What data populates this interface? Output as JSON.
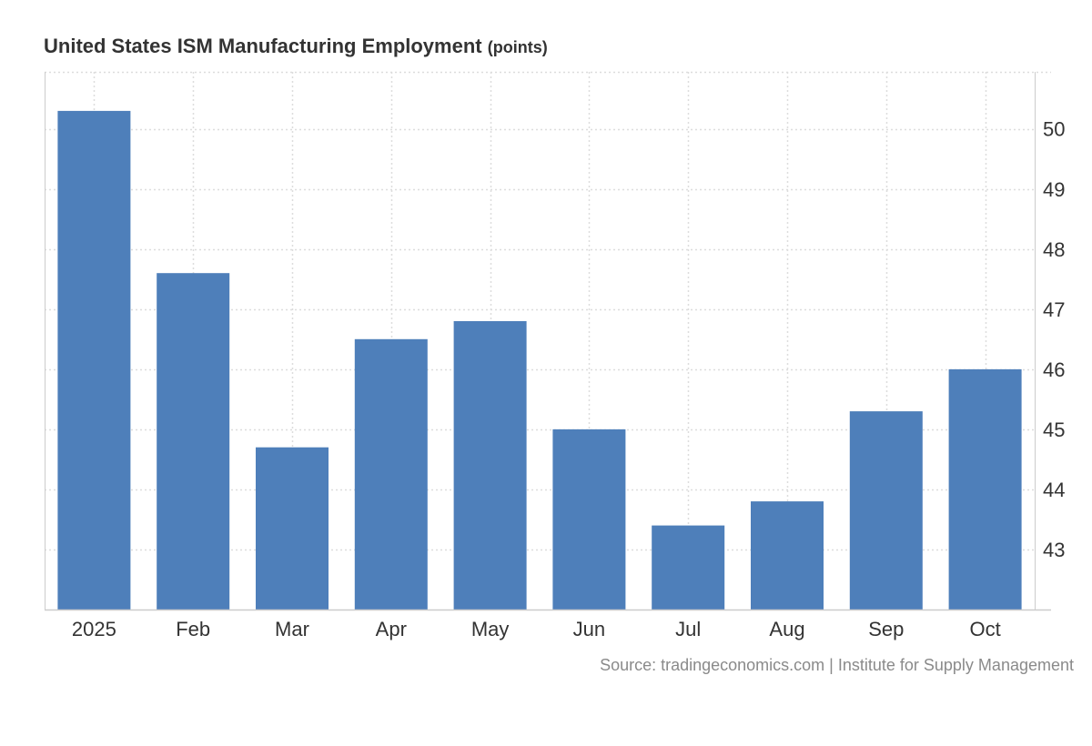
{
  "chart_data": {
    "type": "bar",
    "title": "United States ISM Manufacturing Employment",
    "unit_label": "(points)",
    "categories": [
      "2025",
      "Feb",
      "Mar",
      "Apr",
      "May",
      "Jun",
      "Jul",
      "Aug",
      "Sep",
      "Oct"
    ],
    "values": [
      50.3,
      47.6,
      44.7,
      46.5,
      46.8,
      45.0,
      43.4,
      43.8,
      45.3,
      46.0
    ],
    "yticks": [
      43,
      44,
      45,
      46,
      47,
      48,
      49,
      50
    ],
    "ylim": [
      42.0,
      50.95
    ],
    "xlabel": "",
    "ylabel": "",
    "y_axis_side": "right",
    "grid": true,
    "bar_color": "#4e7fba",
    "grid_color": "#dddddd",
    "axis_color": "#cccccc"
  },
  "source": "Source: tradingeconomics.com | Institute for Supply Management"
}
